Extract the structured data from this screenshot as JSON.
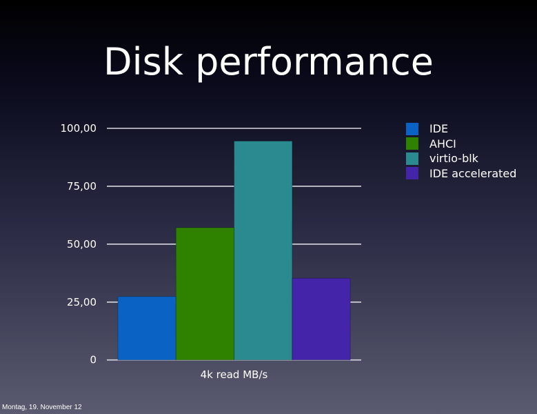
{
  "chart_data": {
    "type": "bar",
    "title": "Disk performance",
    "categories": [
      "4k read MB/s"
    ],
    "xlabel": "4k read MB/s",
    "ylabel": "",
    "ylim": [
      0,
      100
    ],
    "yticks": [
      0,
      25,
      50,
      75,
      100
    ],
    "ytick_labels": [
      "0",
      "25,00",
      "50,00",
      "75,00",
      "100,00"
    ],
    "grid": true,
    "legend_position": "right",
    "series": [
      {
        "name": "IDE",
        "values": [
          27.4
        ],
        "color": "#0a62c4"
      },
      {
        "name": "AHCI",
        "values": [
          57.1
        ],
        "color": "#2f8200"
      },
      {
        "name": "virtio-blk",
        "values": [
          94.5
        ],
        "color": "#2a8a90"
      },
      {
        "name": "IDE accelerated",
        "values": [
          35.3
        ],
        "color": "#4424a8"
      }
    ]
  },
  "footer": "Montag, 19. November 12"
}
